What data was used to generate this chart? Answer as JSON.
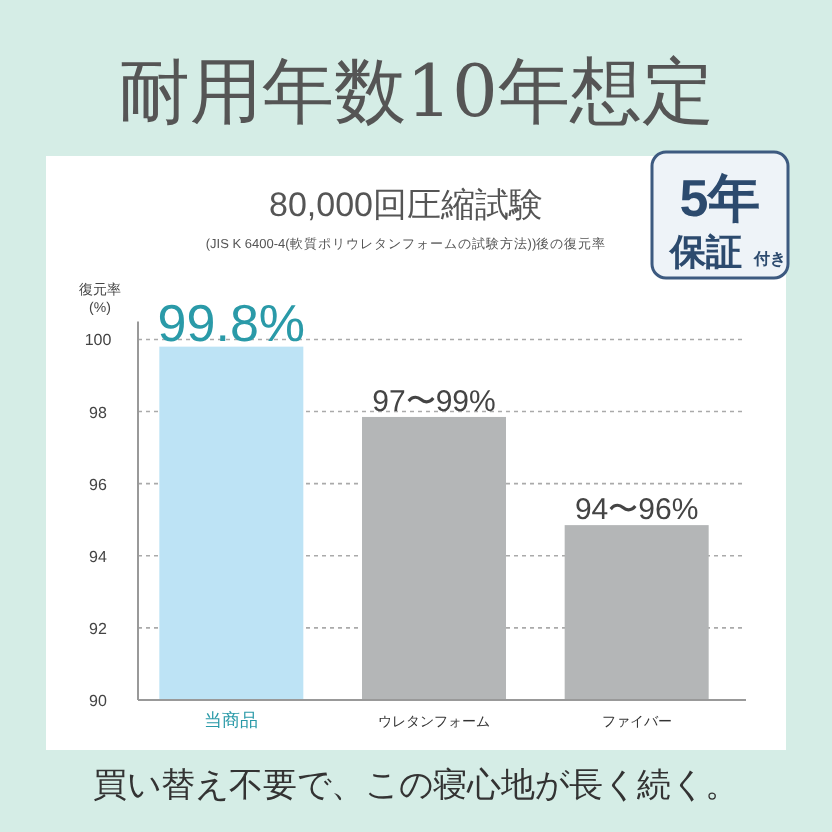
{
  "chart_data": {
    "type": "bar",
    "title": "耐用年数10年想定",
    "subtitle": "80,000回圧縮試験",
    "annotations": [
      "(JIS K 6400-4(軟質ポリウレタンフォームの試験方法))後の復元率",
      "5年保証付き",
      "買い替え不要で、この寝心地が長く続く。",
      {
        "text": "97〜99%",
        "x": "ウレタンフォーム",
        "y": 97.85
      },
      {
        "text": "94〜96%",
        "x": "ファイバー",
        "y": 94.85
      }
    ],
    "ylabel": "復元率 (%)",
    "categories": [
      "当商品",
      "ウレタンフォーム",
      "ファイバー"
    ],
    "values": [
      99.8,
      97.85,
      94.85
    ],
    "colors": [
      "#bde3f5",
      "#b4b6b7",
      "#b4b6b7"
    ],
    "value_labels": [
      "99.8%",
      null,
      null
    ],
    "ylim": [
      90,
      100.5
    ],
    "yticks": [
      90,
      92,
      94,
      96,
      98,
      100
    ],
    "grid": "y"
  }
}
